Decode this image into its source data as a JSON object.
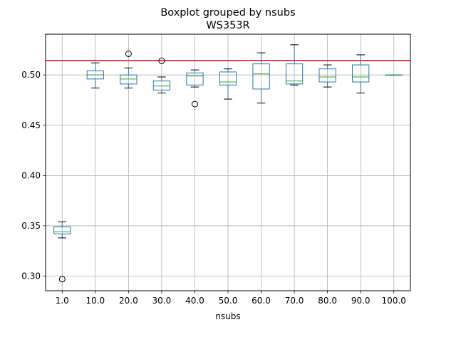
{
  "chart_data": {
    "type": "box",
    "title": "Boxplot grouped by nsubs",
    "subtitle": "WS353R",
    "xlabel": "nsubs",
    "ylabel": "",
    "categories": [
      "1.0",
      "10.0",
      "20.0",
      "30.0",
      "40.0",
      "50.0",
      "60.0",
      "70.0",
      "80.0",
      "90.0",
      "100.0"
    ],
    "boxes": [
      {
        "category": "1.0",
        "whislo": 0.338,
        "q1": 0.342,
        "med": 0.344,
        "q3": 0.349,
        "whishi": 0.354,
        "fliers": [
          0.297
        ]
      },
      {
        "category": "10.0",
        "whislo": 0.487,
        "q1": 0.496,
        "med": 0.5,
        "q3": 0.504,
        "whishi": 0.512,
        "fliers": []
      },
      {
        "category": "20.0",
        "whislo": 0.487,
        "q1": 0.491,
        "med": 0.496,
        "q3": 0.5,
        "whishi": 0.507,
        "fliers": [
          0.521
        ]
      },
      {
        "category": "30.0",
        "whislo": 0.482,
        "q1": 0.485,
        "med": 0.489,
        "q3": 0.494,
        "whishi": 0.498,
        "fliers": [
          0.514
        ]
      },
      {
        "category": "40.0",
        "whislo": 0.488,
        "q1": 0.49,
        "med": 0.499,
        "q3": 0.502,
        "whishi": 0.505,
        "fliers": [
          0.471
        ]
      },
      {
        "category": "50.0",
        "whislo": 0.476,
        "q1": 0.49,
        "med": 0.493,
        "q3": 0.503,
        "whishi": 0.506,
        "fliers": []
      },
      {
        "category": "60.0",
        "whislo": 0.472,
        "q1": 0.486,
        "med": 0.501,
        "q3": 0.511,
        "whishi": 0.522,
        "fliers": []
      },
      {
        "category": "70.0",
        "whislo": 0.49,
        "q1": 0.491,
        "med": 0.494,
        "q3": 0.511,
        "whishi": 0.53,
        "fliers": []
      },
      {
        "category": "80.0",
        "whislo": 0.488,
        "q1": 0.493,
        "med": 0.498,
        "q3": 0.506,
        "whishi": 0.51,
        "fliers": []
      },
      {
        "category": "90.0",
        "whislo": 0.482,
        "q1": 0.493,
        "med": 0.498,
        "q3": 0.51,
        "whishi": 0.52,
        "fliers": []
      },
      {
        "category": "100.0",
        "whislo": 0.5,
        "q1": 0.5,
        "med": 0.5,
        "q3": 0.5,
        "whishi": 0.5,
        "fliers": []
      }
    ],
    "reference_line": {
      "y": 0.5145,
      "color": "#ff0000"
    },
    "yticks": [
      0.3,
      0.35,
      0.4,
      0.45,
      0.5
    ],
    "ytick_labels": [
      "0.30",
      "0.35",
      "0.40",
      "0.45",
      "0.50"
    ],
    "ylim": [
      0.2855,
      0.5405
    ],
    "grid": true,
    "colors": {
      "box": "#1f77b4",
      "median": "#2ca02c",
      "whisker_cap": "#000000",
      "grid": "#b0b0b0",
      "flier": "#000000"
    }
  }
}
